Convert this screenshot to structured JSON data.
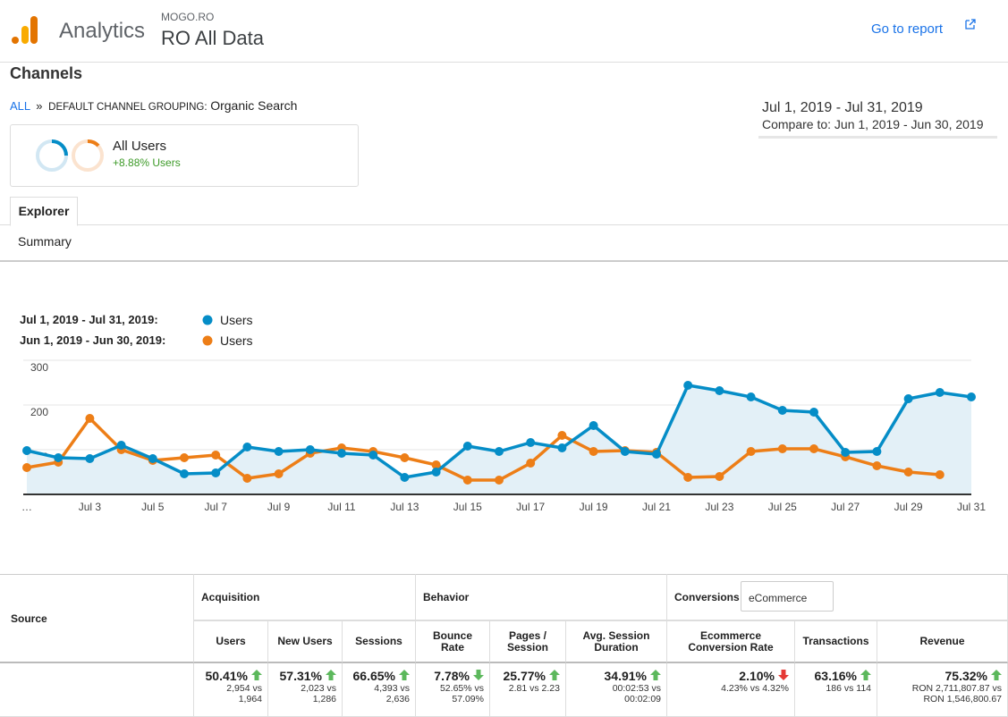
{
  "header": {
    "product": "Analytics",
    "account": "MOGO.RO",
    "property": "RO All Data",
    "link": "Go to report"
  },
  "title": "Channels",
  "breadcrumb": {
    "root": "ALL",
    "separator": "»",
    "dimension": "DEFAULT CHANNEL GROUPING:",
    "value": "Organic Search"
  },
  "date_range": {
    "current": "Jul 1, 2019 - Jul 31, 2019",
    "compare": "Compare to: Jun 1, 2019 - Jun 30, 2019"
  },
  "segment": {
    "name": "All Users",
    "change": "+8.88% Users"
  },
  "tabs": {
    "active": "Explorer",
    "view": "Summary"
  },
  "chart_data": {
    "type": "line",
    "categories": [
      "…",
      null,
      "Jul 3",
      null,
      "Jul 5",
      null,
      "Jul 7",
      null,
      "Jul 9",
      null,
      "Jul 11",
      null,
      "Jul 13",
      null,
      "Jul 15",
      null,
      "Jul 17",
      null,
      "Jul 19",
      null,
      "Jul 21",
      null,
      "Jul 23",
      null,
      "Jul 25",
      null,
      "Jul 27",
      null,
      "Jul 29",
      null,
      "Jul 31"
    ],
    "series": [
      {
        "name": "Users",
        "period": "Jul 1, 2019 - Jul 31, 2019:",
        "color": "#058dc7",
        "fill": "#e3f0f7",
        "values": [
          98,
          82,
          80,
          110,
          80,
          46,
          48,
          106,
          96,
          100,
          92,
          88,
          38,
          50,
          108,
          96,
          116,
          104,
          154,
          96,
          90,
          244,
          232,
          218,
          188,
          184,
          94,
          96,
          214,
          228,
          218
        ]
      },
      {
        "name": "Users",
        "period": "Jun 1, 2019 - Jun 30, 2019:",
        "color": "#ed7e17",
        "values": [
          60,
          72,
          170,
          100,
          76,
          82,
          88,
          36,
          46,
          92,
          104,
          96,
          82,
          66,
          32,
          32,
          70,
          132,
          96,
          98,
          94,
          38,
          40,
          96,
          102,
          102,
          84,
          64,
          50,
          44,
          null
        ]
      }
    ],
    "ylim": [
      0,
      300
    ],
    "yticks": [
      100,
      200,
      300
    ],
    "grid": true
  },
  "table": {
    "source_header": "Source",
    "groups": [
      {
        "label": "Acquisition"
      },
      {
        "label": "Behavior"
      },
      {
        "label": "Conversions",
        "select": "eCommerce"
      }
    ],
    "columns": [
      "Users",
      "New Users",
      "Sessions",
      "Bounce Rate",
      "Pages / Session",
      "Avg. Session Duration",
      "Ecommerce Conversion Rate",
      "Transactions",
      "Revenue"
    ],
    "cells": [
      {
        "change": "50.41%",
        "trend": "up",
        "arrow_color": "#5cb85c",
        "detail": [
          "2,954 vs",
          "1,964"
        ]
      },
      {
        "change": "57.31%",
        "trend": "up",
        "arrow_color": "#5cb85c",
        "detail": [
          "2,023 vs",
          "1,286"
        ]
      },
      {
        "change": "66.65%",
        "trend": "up",
        "arrow_color": "#5cb85c",
        "detail": [
          "4,393 vs",
          "2,636"
        ]
      },
      {
        "change": "7.78%",
        "trend": "down",
        "arrow_color": "#5cb85c",
        "detail": [
          "52.65% vs",
          "57.09%"
        ]
      },
      {
        "change": "25.77%",
        "trend": "up",
        "arrow_color": "#5cb85c",
        "detail": [
          "2.81 vs 2.23"
        ]
      },
      {
        "change": "34.91%",
        "trend": "up",
        "arrow_color": "#5cb85c",
        "detail": [
          "00:02:53 vs",
          "00:02:09"
        ]
      },
      {
        "change": "2.10%",
        "trend": "down",
        "arrow_color": "#e53935",
        "detail": [
          "4.23% vs 4.32%"
        ]
      },
      {
        "change": "63.16%",
        "trend": "up",
        "arrow_color": "#5cb85c",
        "detail": [
          "186 vs 114"
        ]
      },
      {
        "change": "75.32%",
        "trend": "up",
        "arrow_color": "#5cb85c",
        "detail": [
          "RON 2,711,807.87 vs",
          "RON 1,546,800.67"
        ]
      }
    ]
  }
}
